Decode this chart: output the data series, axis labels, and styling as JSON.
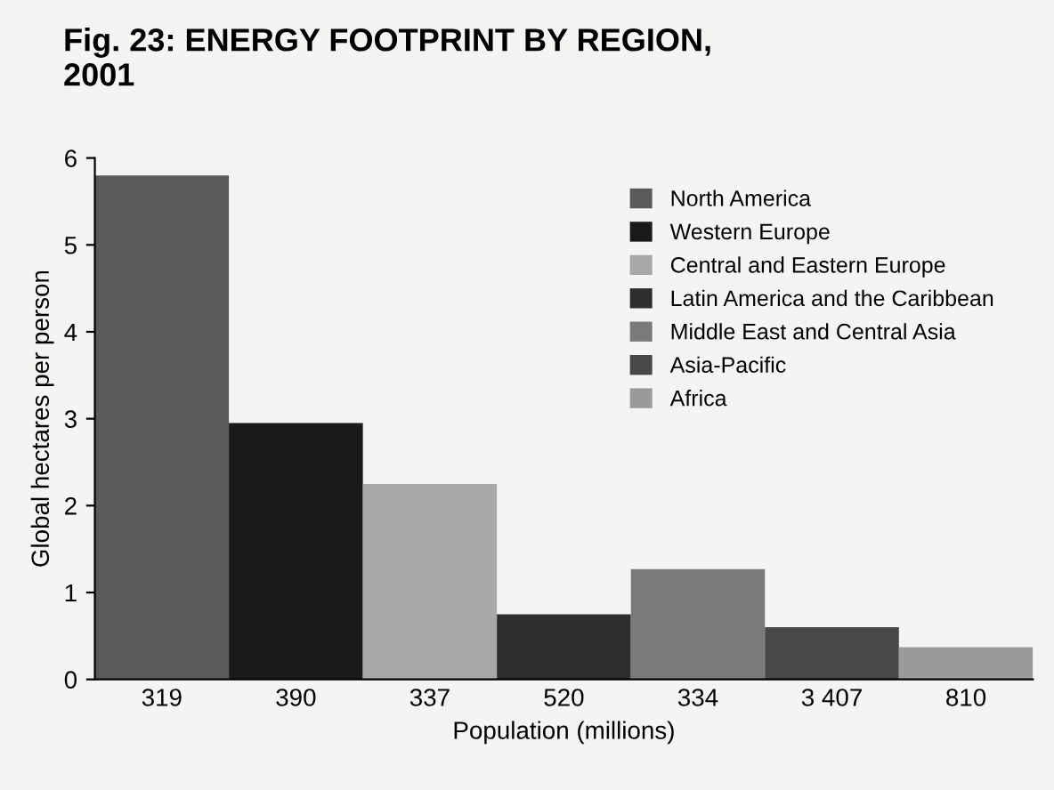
{
  "chart_data": {
    "type": "bar",
    "title": "Fig. 23: ENERGY FOOTPRINT BY REGION,\n2001",
    "xlabel": "Population (millions)",
    "ylabel": "Global hectares per person",
    "categories": [
      "319",
      "390",
      "337",
      "520",
      "334",
      "3 407",
      "810"
    ],
    "series": [
      {
        "name": "North America",
        "color": "#5a5a5a",
        "values": [
          5.8,
          null,
          null,
          null,
          null,
          null,
          null
        ]
      },
      {
        "name": "Western Europe",
        "color": "#1a1a1a",
        "values": [
          null,
          2.95,
          null,
          null,
          null,
          null,
          null
        ]
      },
      {
        "name": "Central and Eastern Europe",
        "color": "#a8a8a8",
        "values": [
          null,
          null,
          2.25,
          null,
          null,
          null,
          null
        ]
      },
      {
        "name": "Latin America and the Caribbean",
        "color": "#2e2e2e",
        "values": [
          null,
          null,
          null,
          0.75,
          null,
          null,
          null
        ]
      },
      {
        "name": "Middle East and Central Asia",
        "color": "#7a7a7a",
        "values": [
          null,
          null,
          null,
          null,
          1.27,
          null,
          null
        ]
      },
      {
        "name": "Asia-Pacific",
        "color": "#484848",
        "values": [
          null,
          null,
          null,
          null,
          null,
          0.6,
          null
        ]
      },
      {
        "name": "Africa",
        "color": "#9a9a9a",
        "values": [
          null,
          null,
          null,
          null,
          null,
          null,
          0.37
        ]
      }
    ],
    "ylim": [
      0,
      6
    ],
    "yticks": [
      0,
      1,
      2,
      3,
      4,
      5,
      6
    ],
    "grid": false,
    "legend": "top right"
  }
}
